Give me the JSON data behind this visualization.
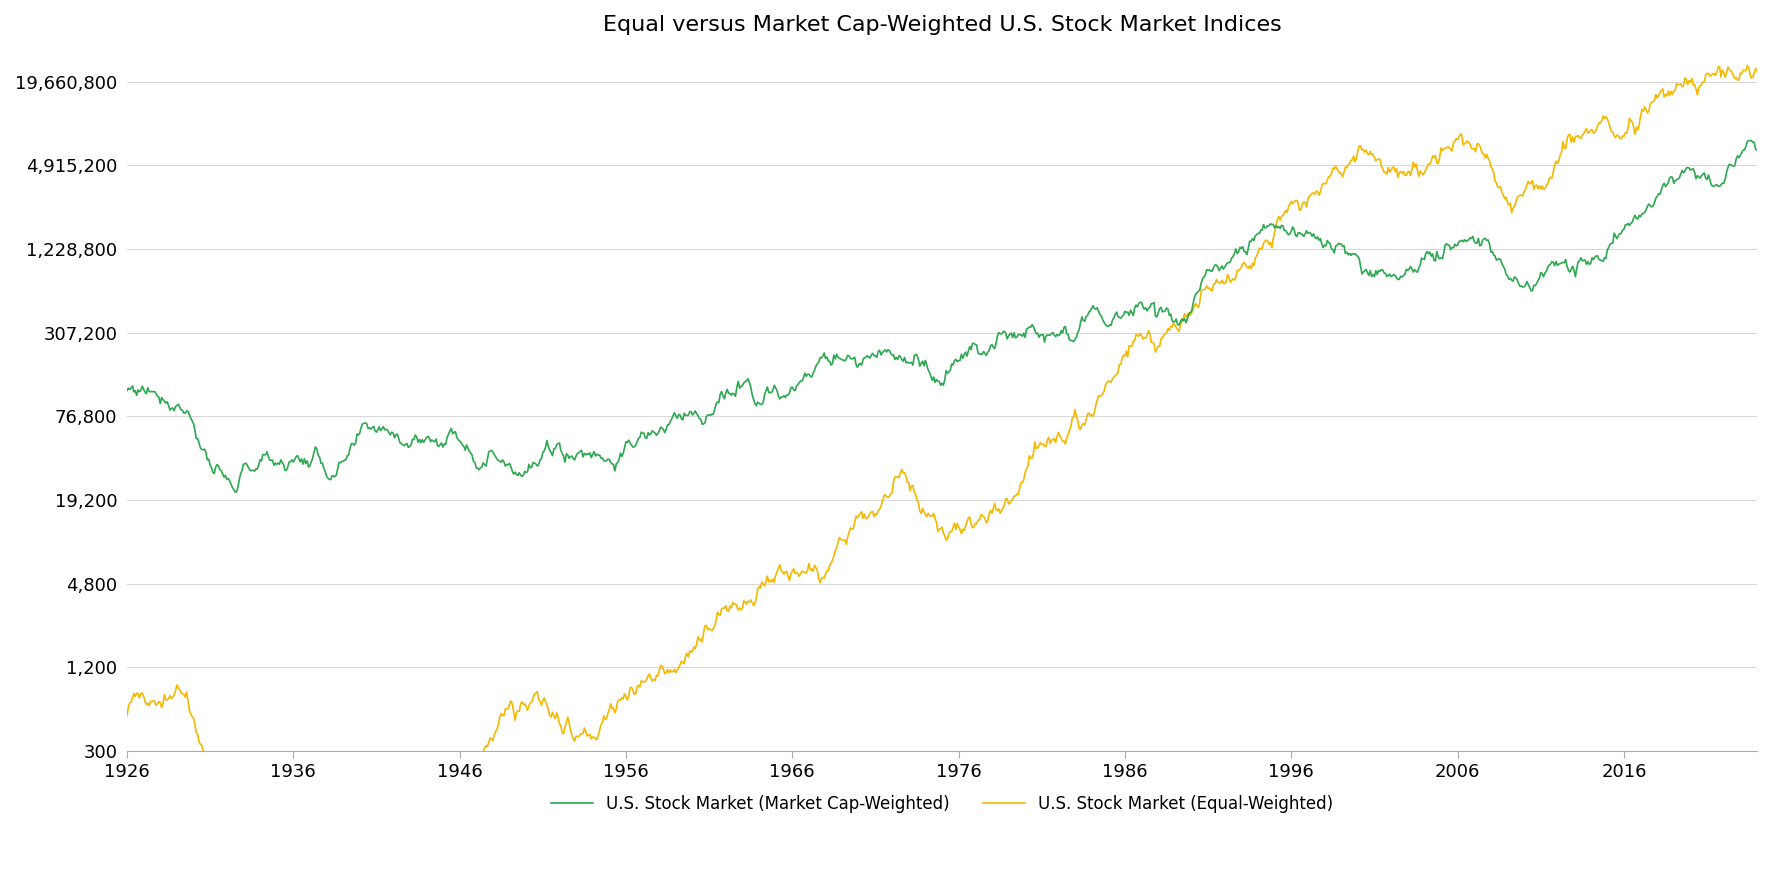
{
  "title": "Equal versus Market Cap-Weighted U.S. Stock Market Indices",
  "title_fontsize": 16,
  "line_green_label": "U.S. Stock Market (Market Cap-Weighted)",
  "line_yellow_label": "U.S. Stock Market (Equal-Weighted)",
  "line_green_color": "#2ca850",
  "line_yellow_color": "#f5b800",
  "background_color": "#ffffff",
  "yticks": [
    300,
    1200,
    4800,
    19200,
    76800,
    307200,
    1228800,
    4915200,
    19660800
  ],
  "ytick_labels": [
    "300",
    "1,200",
    "4,800",
    "19,200",
    "76,800",
    "307,200",
    "1,228,800",
    "4,915,200",
    "19,660,800"
  ],
  "xticks": [
    1926,
    1936,
    1946,
    1956,
    1966,
    1976,
    1986,
    1996,
    2006,
    2016
  ],
  "xmin": 1926,
  "xmax": 2024,
  "ymin": 300,
  "ymax": 30000000,
  "linewidth": 1.2
}
